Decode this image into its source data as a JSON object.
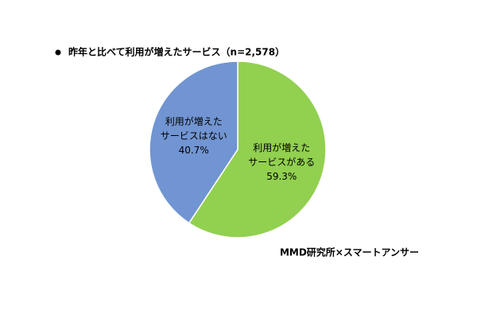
{
  "chart_data": {
    "type": "pie",
    "title": "昨年と比べて利用が増えたサービス（n=2,578）",
    "categories": [
      [
        "利用が増えた",
        "サービスがある"
      ],
      [
        "利用が増えた",
        "サービスはない"
      ]
    ],
    "values": [
      59.3,
      40.7
    ],
    "value_labels": [
      "59.3%",
      "40.7%"
    ],
    "colors": [
      "#92d050",
      "#7195d2"
    ],
    "source": "MMD研究所×スマートアンサー"
  }
}
